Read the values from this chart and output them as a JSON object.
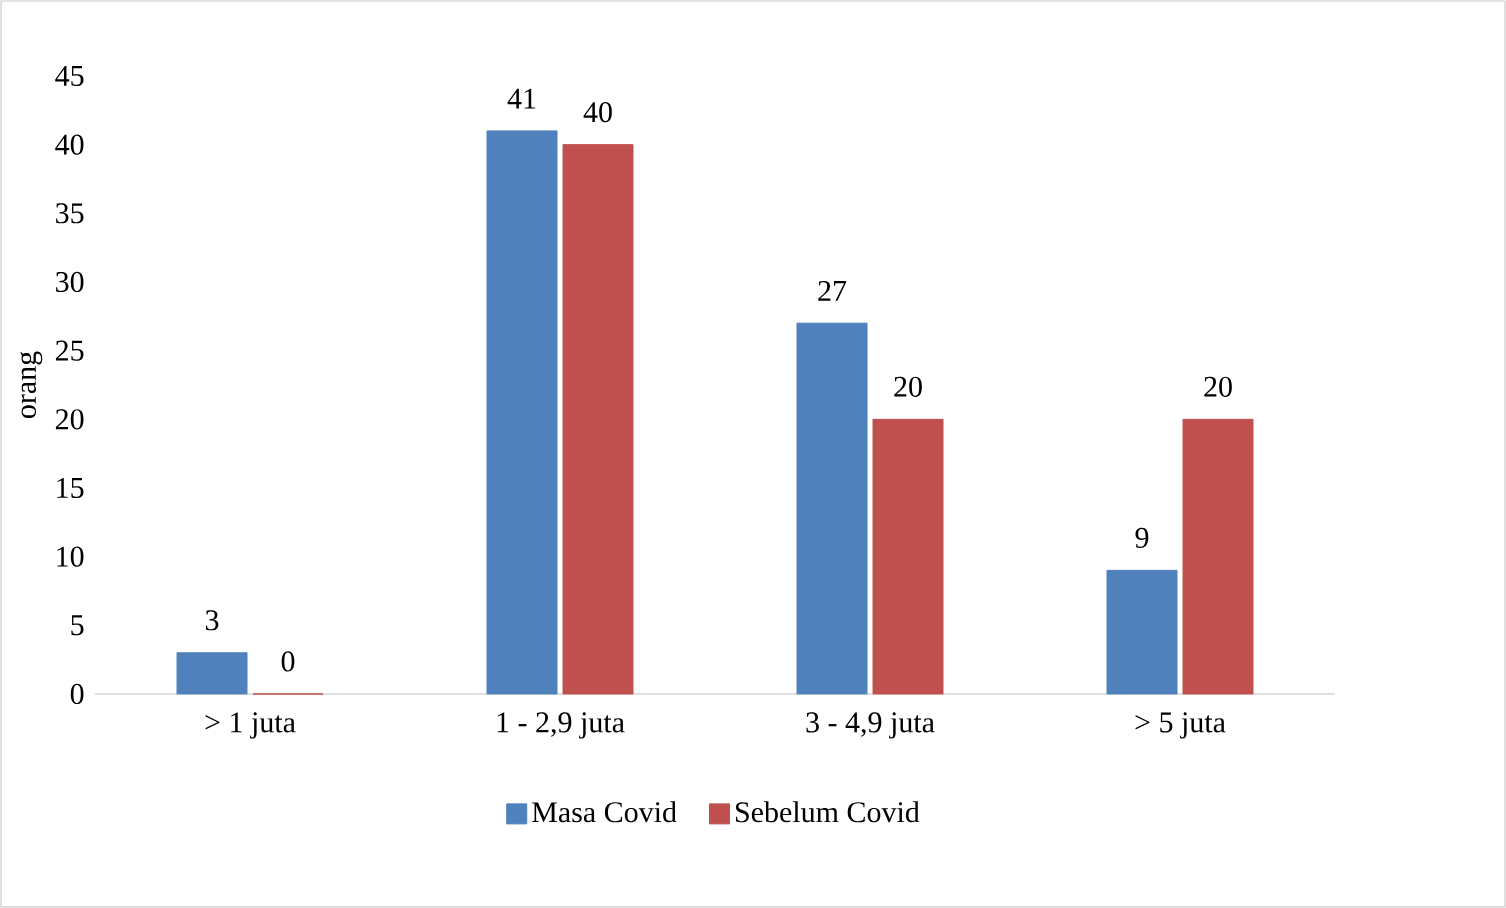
{
  "chart_data": {
    "type": "bar",
    "ylabel": "orang",
    "categories": [
      "> 1 juta",
      "1 - 2,9 juta",
      "3 - 4,9 juta",
      "> 5 juta"
    ],
    "series": [
      {
        "name": "Masa Covid",
        "color": "#4f81bd",
        "values": [
          3,
          41,
          27,
          9
        ]
      },
      {
        "name": "Sebelum Covid",
        "color": "#c0504d",
        "values": [
          0,
          40,
          20,
          20
        ]
      }
    ],
    "ylim": [
      0,
      45
    ],
    "yticks": [
      0,
      5,
      10,
      15,
      20,
      25,
      30,
      35,
      40,
      45
    ],
    "data_labels": true,
    "grid": false,
    "legend": "bottom"
  }
}
